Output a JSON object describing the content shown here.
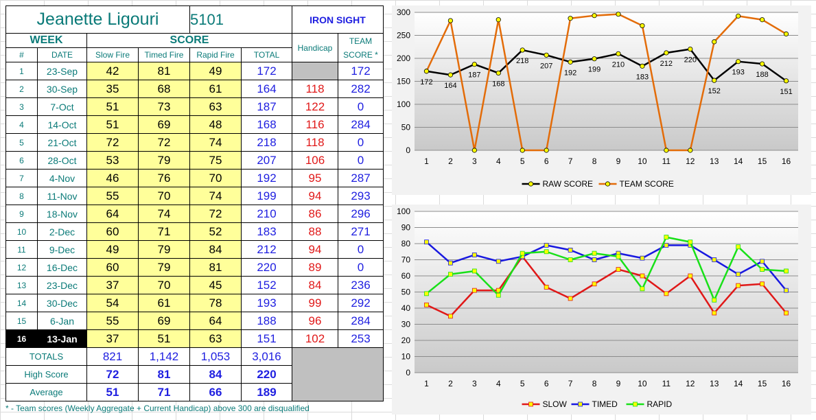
{
  "shooter": {
    "name": "Jeanette Ligouri",
    "number": "5101",
    "team": "IRON SIGHT"
  },
  "headers": {
    "week": "WEEK",
    "score": "SCORE",
    "handicap": "Handicap",
    "team_score": "TEAM SCORE *",
    "num": "#",
    "date": "DATE",
    "slow": "Slow Fire",
    "timed": "Timed Fire",
    "rapid": "Rapid Fire",
    "total": "TOTAL"
  },
  "rows": [
    {
      "n": "1",
      "date": "23-Sep",
      "slow": "42",
      "timed": "81",
      "rapid": "49",
      "total": "172",
      "hc": "",
      "team": "172"
    },
    {
      "n": "2",
      "date": "30-Sep",
      "slow": "35",
      "timed": "68",
      "rapid": "61",
      "total": "164",
      "hc": "118",
      "team": "282"
    },
    {
      "n": "3",
      "date": "7-Oct",
      "slow": "51",
      "timed": "73",
      "rapid": "63",
      "total": "187",
      "hc": "122",
      "team": "0"
    },
    {
      "n": "4",
      "date": "14-Oct",
      "slow": "51",
      "timed": "69",
      "rapid": "48",
      "total": "168",
      "hc": "116",
      "team": "284"
    },
    {
      "n": "5",
      "date": "21-Oct",
      "slow": "72",
      "timed": "72",
      "rapid": "74",
      "total": "218",
      "hc": "118",
      "team": "0"
    },
    {
      "n": "6",
      "date": "28-Oct",
      "slow": "53",
      "timed": "79",
      "rapid": "75",
      "total": "207",
      "hc": "106",
      "team": "0"
    },
    {
      "n": "7",
      "date": "4-Nov",
      "slow": "46",
      "timed": "76",
      "rapid": "70",
      "total": "192",
      "hc": "95",
      "team": "287"
    },
    {
      "n": "8",
      "date": "11-Nov",
      "slow": "55",
      "timed": "70",
      "rapid": "74",
      "total": "199",
      "hc": "94",
      "team": "293"
    },
    {
      "n": "9",
      "date": "18-Nov",
      "slow": "64",
      "timed": "74",
      "rapid": "72",
      "total": "210",
      "hc": "86",
      "team": "296"
    },
    {
      "n": "10",
      "date": "2-Dec",
      "slow": "60",
      "timed": "71",
      "rapid": "52",
      "total": "183",
      "hc": "88",
      "team": "271"
    },
    {
      "n": "11",
      "date": "9-Dec",
      "slow": "49",
      "timed": "79",
      "rapid": "84",
      "total": "212",
      "hc": "94",
      "team": "0"
    },
    {
      "n": "12",
      "date": "16-Dec",
      "slow": "60",
      "timed": "79",
      "rapid": "81",
      "total": "220",
      "hc": "89",
      "team": "0"
    },
    {
      "n": "13",
      "date": "23-Dec",
      "slow": "37",
      "timed": "70",
      "rapid": "45",
      "total": "152",
      "hc": "84",
      "team": "236"
    },
    {
      "n": "14",
      "date": "30-Dec",
      "slow": "54",
      "timed": "61",
      "rapid": "78",
      "total": "193",
      "hc": "99",
      "team": "292"
    },
    {
      "n": "15",
      "date": "6-Jan",
      "slow": "55",
      "timed": "69",
      "rapid": "64",
      "total": "188",
      "hc": "96",
      "team": "284"
    },
    {
      "n": "16",
      "date": "13-Jan",
      "slow": "37",
      "timed": "51",
      "rapid": "63",
      "total": "151",
      "hc": "102",
      "team": "253"
    }
  ],
  "summary": {
    "totals_label": "TOTALS",
    "totals": {
      "slow": "821",
      "timed": "1,142",
      "rapid": "1,053",
      "total": "3,016"
    },
    "high_label": "High Score",
    "high": {
      "slow": "72",
      "timed": "81",
      "rapid": "84",
      "total": "220"
    },
    "avg_label": "Average",
    "avg": {
      "slow": "51",
      "timed": "71",
      "rapid": "66",
      "total": "189"
    }
  },
  "footnote": "* - Team scores (Weekly Aggregate + Current Handicap) above 300 are disqualified",
  "colors": {
    "teal": "#0a7a78",
    "blue": "#1e1ee0",
    "red": "#e01818",
    "yellow": "#ffff9a",
    "panel": "#31849b"
  },
  "chart_data": [
    {
      "type": "line",
      "x": [
        1,
        2,
        3,
        4,
        5,
        6,
        7,
        8,
        9,
        10,
        11,
        12,
        13,
        14,
        15,
        16
      ],
      "ylim": [
        0,
        300
      ],
      "yticks": [
        0,
        50,
        100,
        150,
        200,
        250,
        300
      ],
      "grid": true,
      "legend_position": "bottom",
      "series": [
        {
          "name": "RAW SCORE",
          "color": "#000000",
          "values": [
            172,
            164,
            187,
            168,
            218,
            207,
            192,
            199,
            210,
            183,
            212,
            220,
            152,
            193,
            188,
            151
          ],
          "labels": true
        },
        {
          "name": "TEAM SCORE",
          "color": "#e36c09",
          "values": [
            172,
            282,
            0,
            284,
            0,
            0,
            287,
            293,
            296,
            271,
            0,
            0,
            236,
            292,
            284,
            253
          ],
          "labels": false
        }
      ]
    },
    {
      "type": "line",
      "x": [
        1,
        2,
        3,
        4,
        5,
        6,
        7,
        8,
        9,
        10,
        11,
        12,
        13,
        14,
        15,
        16
      ],
      "ylim": [
        0,
        100
      ],
      "yticks": [
        0,
        10,
        20,
        30,
        40,
        50,
        60,
        70,
        80,
        90,
        100
      ],
      "grid": true,
      "legend_position": "bottom",
      "series": [
        {
          "name": "SLOW",
          "color": "#e01818",
          "values": [
            42,
            35,
            51,
            51,
            72,
            53,
            46,
            55,
            64,
            60,
            49,
            60,
            37,
            54,
            55,
            37
          ]
        },
        {
          "name": "TIMED",
          "color": "#1818e0",
          "values": [
            81,
            68,
            73,
            69,
            72,
            79,
            76,
            70,
            74,
            71,
            79,
            79,
            70,
            61,
            69,
            51
          ]
        },
        {
          "name": "RAPID",
          "color": "#18e018",
          "values": [
            49,
            61,
            63,
            48,
            74,
            75,
            70,
            74,
            72,
            52,
            84,
            81,
            45,
            78,
            64,
            63
          ]
        }
      ]
    }
  ]
}
